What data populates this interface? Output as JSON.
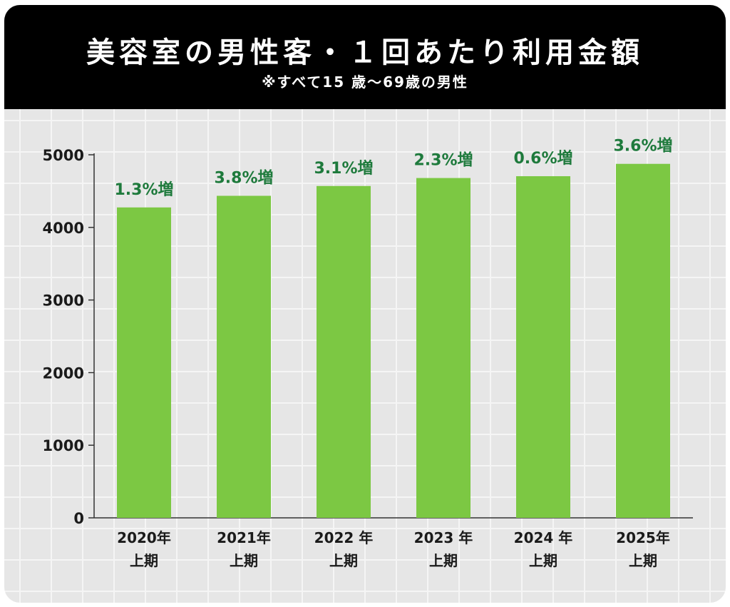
{
  "header": {
    "title": "美容室の男性客・１回あたり利用金額",
    "subtitle": "※すべて15 歳～69歳の男性"
  },
  "colors": {
    "bar": "#7cc843",
    "label": "#1e7a3c",
    "header_bg": "#000000",
    "plot_bg": "#e6e6e6",
    "grid": "#f5f5f5",
    "axis": "#333333"
  },
  "chart_data": {
    "type": "bar",
    "title": "美容室の男性客・１回あたり利用金額",
    "subtitle": "※すべて15 歳～69歳の男性",
    "categories": [
      [
        "2020年",
        "上期"
      ],
      [
        "2021年",
        "上期"
      ],
      [
        "2022 年",
        "上期"
      ],
      [
        "2023 年",
        "上期"
      ],
      [
        "2024 年",
        "上期"
      ],
      [
        "2025年",
        "上期"
      ]
    ],
    "values": [
      4275,
      4435,
      4570,
      4680,
      4705,
      4875
    ],
    "data_labels": [
      "1.3%増",
      "3.8%増",
      "3.1%増",
      "2.3%増",
      "0.6%増",
      "3.6%増"
    ],
    "yticks": [
      0,
      1000,
      2000,
      3000,
      4000,
      5000
    ],
    "ylim": [
      0,
      5000
    ],
    "xlabel": "",
    "ylabel": "",
    "grid": true,
    "legend": "none"
  }
}
